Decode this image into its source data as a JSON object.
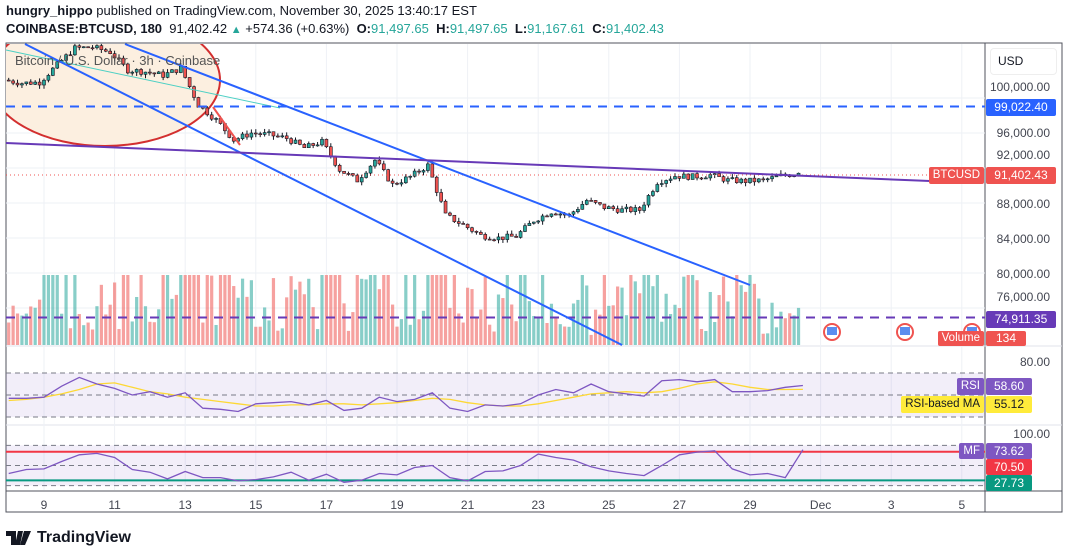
{
  "header": {
    "author": "hungry_hippo",
    "published_text": "published on TradingView.com, November 30, 2025 13:40:17 EST",
    "symbol": "COINBASE:BTCUSD, 180",
    "last": "91,402.42",
    "change": "+574.36 (+0.63%)",
    "o_label": "O:",
    "o": "91,497.65",
    "h_label": "H:",
    "h": "91,497.65",
    "l_label": "L:",
    "l": "91,167.61",
    "c_label": "C:",
    "c": "91,402.43"
  },
  "legend_title": "Bitcoin / U.S. Dollar · 3h · Coinbase",
  "currency_button": "USD",
  "price_axis": [
    "100,000.00",
    "96,000.00",
    "92,000.00",
    "88,000.00",
    "84,000.00",
    "80,000.00",
    "76,000.00"
  ],
  "price_badges": {
    "upper_level": "99,022.40",
    "symbol_tag": "BTCUSD",
    "last_price": "91,402.43",
    "lower_level": "74,911.35",
    "volume_tag": "Volume",
    "volume_value": "134"
  },
  "rsi_pane": {
    "axis_label": "80.00",
    "rsi_tag": "RSI",
    "rsi_value": "58.60",
    "ma_tag": "RSI-based MA",
    "ma_value": "55.12"
  },
  "mf_pane": {
    "axis_label": "100.00",
    "mf_tag": "MF",
    "mf_value": "73.62",
    "upper_value": "70.50",
    "lower_value": "27.73"
  },
  "date_axis": [
    "9",
    "11",
    "13",
    "15",
    "17",
    "19",
    "21",
    "23",
    "25",
    "27",
    "29",
    "Dec",
    "3",
    "5"
  ],
  "brand": "TradingView",
  "colors": {
    "up": "#26a69a",
    "down": "#ef5350",
    "channel": "#2962ff",
    "trend": "#673ab7",
    "rsi": "#7e57c2",
    "rsi_ma": "#fdd835",
    "mf_upper": "#f23645",
    "mf_lower": "#089981",
    "ellipse_fill": "#fcefe0",
    "ellipse_stroke": "#d32f2f"
  },
  "chart_data": {
    "type": "candlestick",
    "interval": "3h",
    "x_unit": "date (Nov 2025)",
    "times": [
      "11-08 00",
      "11-08 12",
      "11-09 00",
      "11-09 12",
      "11-10 00",
      "11-10 12",
      "11-11 00",
      "11-11 12",
      "11-12 00",
      "11-12 12",
      "11-13 00",
      "11-13 12",
      "11-14 00",
      "11-14 12",
      "11-15 00",
      "11-15 12",
      "11-16 00",
      "11-16 12",
      "11-17 00",
      "11-17 12",
      "11-18 00",
      "11-18 12",
      "11-19 00",
      "11-19 12",
      "11-20 00",
      "11-20 12",
      "11-21 00",
      "11-21 12",
      "11-22 00",
      "11-22 12",
      "11-23 00",
      "11-23 12",
      "11-24 00",
      "11-24 12",
      "11-25 00",
      "11-25 12",
      "11-26 00",
      "11-26 12",
      "11-27 00",
      "11-27 12",
      "11-28 00",
      "11-28 12",
      "11-29 00",
      "11-29 12",
      "11-30 00",
      "11-30 12"
    ],
    "close": [
      102050,
      101700,
      101800,
      103800,
      105700,
      105800,
      105250,
      103200,
      103000,
      102600,
      103400,
      99200,
      97500,
      95200,
      96000,
      95800,
      95400,
      94300,
      95000,
      91800,
      90600,
      92900,
      90100,
      91000,
      92300,
      86600,
      85500,
      84300,
      84000,
      84200,
      86000,
      87000,
      86600,
      88300,
      87500,
      87200,
      87200,
      90400,
      91100,
      91000,
      91200,
      90600,
      90500,
      90600,
      91100,
      91402
    ],
    "rsi": [
      47,
      47,
      48,
      58,
      66,
      60,
      56,
      50,
      53,
      48,
      52,
      38,
      37,
      35,
      42,
      43,
      44,
      41,
      45,
      36,
      38,
      48,
      44,
      46,
      52,
      38,
      35,
      41,
      40,
      42,
      50,
      55,
      52,
      60,
      53,
      51,
      49,
      63,
      64,
      62,
      64,
      53,
      53,
      54,
      57,
      58.6
    ],
    "rsi_ma": [
      45,
      46,
      48,
      51,
      55,
      60,
      61,
      57,
      53,
      51,
      48,
      46,
      44,
      42,
      40,
      40,
      41,
      41,
      42,
      42,
      41,
      42,
      43,
      45,
      47,
      46,
      43,
      41,
      40,
      40,
      42,
      45,
      48,
      51,
      52,
      53,
      52,
      53,
      56,
      60,
      62,
      60,
      57,
      55,
      55,
      55.12
    ],
    "mf": [
      38,
      44,
      45,
      56,
      66,
      68,
      62,
      44,
      40,
      30,
      41,
      32,
      32,
      27,
      29,
      33,
      40,
      28,
      37,
      25,
      28,
      38,
      36,
      47,
      50,
      32,
      27,
      41,
      42,
      50,
      67,
      62,
      58,
      48,
      42,
      38,
      35,
      50,
      66,
      70,
      72,
      45,
      36,
      38,
      32,
      73.62
    ],
    "levels": {
      "upper": 99022.4,
      "lower": 74911.35,
      "mf_upper": 70.5,
      "mf_lower": 27.73
    },
    "price_range": [
      72000,
      106000
    ],
    "rsi_range": [
      30,
      80
    ],
    "mf_range": [
      0,
      100
    ],
    "grid": true
  }
}
